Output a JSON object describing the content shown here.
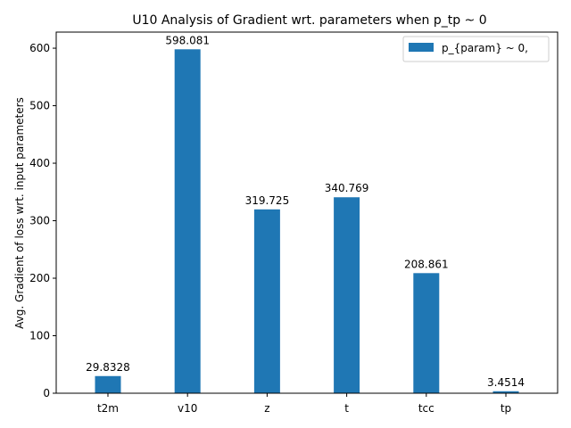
{
  "chart_data": {
    "type": "bar",
    "title": "U10 Analysis of Gradient wrt. parameters when p_tp ~ 0",
    "xlabel": "",
    "ylabel": "Avg. Gradient of loss wrt. input parameters",
    "categories": [
      "t2m",
      "v10",
      "z",
      "t",
      "tcc",
      "tp"
    ],
    "series": [
      {
        "name": "p_{param} ~ 0,",
        "values": [
          29.8328,
          598.081,
          319.725,
          340.769,
          208.861,
          3.4514
        ],
        "labels": [
          "29.8328",
          "598.081",
          "319.725",
          "340.769",
          "208.861",
          "3.4514"
        ],
        "color": "#1f77b4"
      }
    ],
    "ylim": [
      0,
      628
    ],
    "yticks": [
      0,
      100,
      200,
      300,
      400,
      500,
      600
    ],
    "ytick_labels": [
      "0",
      "100",
      "200",
      "300",
      "400",
      "500",
      "600"
    ],
    "grid": false,
    "legend": "top-right"
  }
}
